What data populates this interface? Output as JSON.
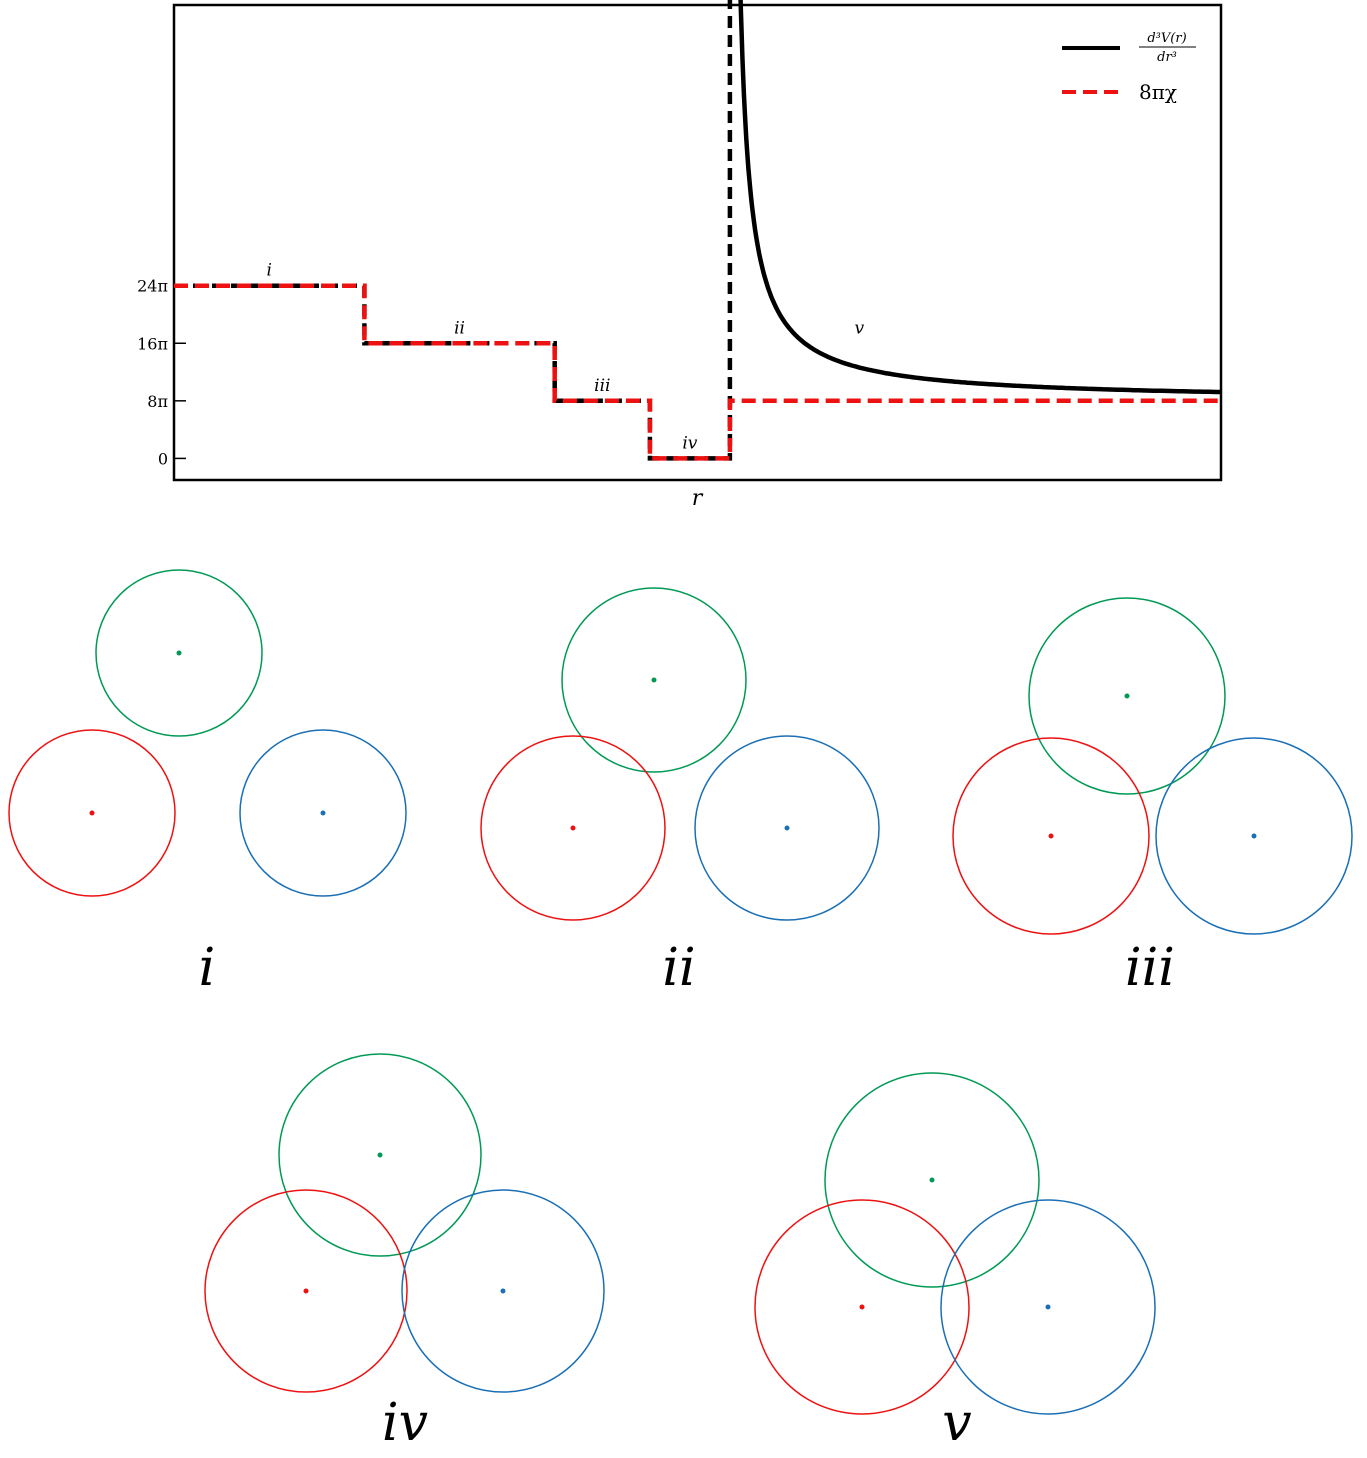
{
  "chart_data": {
    "type": "line",
    "xlabel": "r",
    "ylabel": "",
    "y_ticks": [
      "0",
      "8π",
      "16π",
      "24π"
    ],
    "y_tick_values": [
      0,
      8,
      16,
      24
    ],
    "y_unit": "π",
    "series": [
      {
        "name": "d³V(r)/dr³",
        "legend_numerator": "d³V(r)",
        "legend_denominator": "dr³",
        "color": "#000000",
        "style": "solid",
        "points": [
          [
            0,
            24
          ],
          [
            1,
            24
          ],
          [
            1,
            16
          ],
          [
            2,
            16
          ],
          [
            2,
            8
          ],
          [
            2.5,
            8
          ],
          [
            2.5,
            0
          ],
          [
            2.92,
            0
          ],
          [
            2.92,
            66
          ]
        ],
        "decay_tail": {
          "x_start": 2.92,
          "x_end": 5.5,
          "y_asymptote": 8,
          "amplitude": 0.9
        }
      },
      {
        "name": "8πχ",
        "color": "#ee1111",
        "style": "dashed",
        "points": [
          [
            0,
            24
          ],
          [
            1,
            24
          ],
          [
            1,
            16
          ],
          [
            2,
            16
          ],
          [
            2,
            8
          ],
          [
            2.5,
            8
          ],
          [
            2.5,
            0
          ],
          [
            2.92,
            0
          ],
          [
            2.92,
            8
          ],
          [
            5.5,
            8
          ]
        ]
      }
    ],
    "segment_labels": [
      {
        "text": "i",
        "x": 0.5,
        "y": 24
      },
      {
        "text": "ii",
        "x": 1.5,
        "y": 16
      },
      {
        "text": "iii",
        "x": 2.25,
        "y": 8
      },
      {
        "text": "iv",
        "x": 2.71,
        "y": 0
      },
      {
        "text": "v",
        "x": 3.6,
        "y": 16
      }
    ],
    "xlim": [
      0,
      5.5
    ],
    "ylim": [
      -3,
      63
    ],
    "legend_position": "top-right",
    "grid": false
  },
  "panels": [
    {
      "label": "i"
    },
    {
      "label": "ii"
    },
    {
      "label": "iii"
    },
    {
      "label": "iv"
    },
    {
      "label": "v"
    }
  ],
  "colors": {
    "red": "#ee1111",
    "green": "#009955",
    "blue": "#1a6fb5"
  }
}
